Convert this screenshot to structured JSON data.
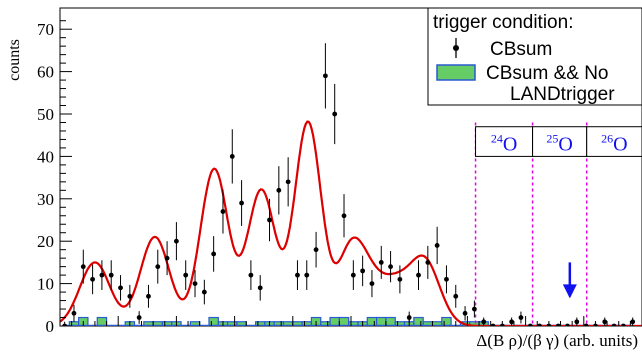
{
  "chart_data": {
    "type": "scatter",
    "ylabel": "counts",
    "xlabel": "Δ(B ρ)/(β γ) (arb. units)",
    "ylim": [
      0,
      75
    ],
    "xlim": [
      0,
      100
    ],
    "yticks": [
      0,
      10,
      20,
      30,
      40,
      50,
      60,
      70
    ],
    "grid": false,
    "legend": {
      "position": "top-right",
      "title": "trigger condition:",
      "entries": [
        {
          "label": "CBsum",
          "marker": "point-with-error-bar"
        },
        {
          "label_lines": [
            "CBsum && No",
            "LANDtrigger"
          ],
          "marker": "filled-box"
        }
      ]
    },
    "regions": [
      {
        "label_mass": "24",
        "label_element": "O",
        "x_start": 71.4,
        "x_end": 81.2
      },
      {
        "label_mass": "25",
        "label_element": "O",
        "x_start": 81.2,
        "x_end": 90.5
      },
      {
        "label_mass": "26",
        "label_element": "O",
        "x_start": 90.5,
        "x_end": 100
      }
    ],
    "arrow": {
      "x": 87.6,
      "y_top": 15,
      "y_bottom": 7
    },
    "series": [
      {
        "name": "CBsum",
        "style": "points",
        "color": "#000000",
        "x": [
          0.8,
          2.4,
          4.0,
          5.6,
          7.2,
          8.8,
          10.4,
          12.0,
          13.6,
          15.2,
          16.8,
          18.4,
          20.0,
          21.6,
          23.2,
          24.8,
          26.4,
          28.0,
          29.6,
          31.2,
          32.8,
          34.4,
          36.0,
          37.6,
          39.2,
          40.8,
          42.4,
          44.0,
          45.6,
          47.2,
          48.8,
          50.4,
          52.0,
          53.6,
          55.2,
          56.8,
          58.4,
          60.0,
          61.6,
          63.2,
          64.8,
          66.4,
          68.0,
          69.6,
          71.2,
          72.8,
          74.4,
          76.0,
          77.6,
          79.2,
          80.8,
          82.4,
          84.0,
          85.6,
          87.2,
          88.8,
          90.4,
          92.0,
          93.6,
          95.2,
          96.8,
          98.4
        ],
        "y": [
          0,
          3,
          14,
          11,
          12,
          12,
          9,
          7,
          2,
          7,
          14,
          16,
          20,
          12,
          10,
          8,
          17,
          27,
          40,
          29,
          12,
          9,
          25,
          32,
          34,
          12,
          12,
          18,
          59,
          50,
          26,
          12,
          13,
          10,
          15,
          14,
          11,
          2,
          12,
          15,
          19,
          11,
          7,
          3,
          4,
          1,
          0,
          0,
          1,
          2,
          0,
          0,
          0,
          0,
          0,
          1,
          0,
          0,
          1,
          0,
          0,
          1
        ],
        "err": [
          1,
          2,
          4,
          3.5,
          3.5,
          3.5,
          3,
          2.7,
          1.5,
          2.7,
          4,
          4,
          4.5,
          3.5,
          3.2,
          2.9,
          4.2,
          5.2,
          6.4,
          5.4,
          3.5,
          3,
          5,
          5.7,
          5.8,
          3.5,
          3.5,
          4.2,
          7.7,
          7.1,
          5.1,
          3.5,
          3.6,
          3.2,
          3.9,
          3.7,
          3.3,
          1.4,
          3.5,
          3.9,
          4.4,
          3.3,
          2.7,
          1.7,
          2,
          1,
          0,
          0,
          1,
          1.4,
          0,
          0,
          0,
          0,
          0,
          1,
          0,
          0,
          1,
          0,
          0,
          1
        ]
      },
      {
        "name": "CBsum && No LANDtrigger",
        "style": "histogram",
        "color": "#2a5ad1",
        "fill": "#66cc66",
        "x": [
          0.8,
          2.4,
          4.0,
          5.6,
          7.2,
          8.8,
          10.4,
          12.0,
          13.6,
          15.2,
          16.8,
          18.4,
          20.0,
          21.6,
          23.2,
          24.8,
          26.4,
          28.0,
          29.6,
          31.2,
          32.8,
          34.4,
          36.0,
          37.6,
          39.2,
          40.8,
          42.4,
          44.0,
          45.6,
          47.2,
          48.8,
          50.4,
          52.0,
          53.6,
          55.2,
          56.8,
          58.4,
          60.0,
          61.6,
          63.2,
          64.8,
          66.4,
          68.0,
          69.6,
          71.2,
          72.8,
          74.4,
          76.0,
          77.6,
          79.2,
          80.8,
          82.4,
          84.0,
          85.6,
          87.2,
          88.8,
          90.4,
          92.0,
          93.6,
          95.2,
          96.8,
          98.4
        ],
        "y": [
          0,
          1,
          2,
          0,
          2,
          0,
          0,
          1,
          0,
          1,
          1,
          1,
          1,
          0,
          1,
          0,
          2,
          1,
          1,
          1,
          0,
          1,
          1,
          1,
          1,
          1,
          1,
          2,
          1,
          2,
          2,
          1,
          1,
          2,
          2,
          2,
          1,
          1,
          2,
          1,
          1,
          2,
          0,
          1,
          1,
          1,
          0,
          0,
          0,
          0,
          0,
          0,
          0,
          0,
          0,
          0,
          0,
          0,
          0,
          0,
          0,
          0
        ]
      },
      {
        "name": "fit",
        "style": "line",
        "color": "#dd0000",
        "peaks": [
          {
            "center": 6.0,
            "amplitude": 15,
            "sigma": 2.6
          },
          {
            "center": 16.3,
            "amplitude": 21,
            "sigma": 2.5
          },
          {
            "center": 26.5,
            "amplitude": 37,
            "sigma": 2.4
          },
          {
            "center": 34.6,
            "amplitude": 32,
            "sigma": 2.4
          },
          {
            "center": 42.6,
            "amplitude": 48,
            "sigma": 2.3
          },
          {
            "center": 51.8,
            "amplitude": 15,
            "sigma": 2.9
          },
          {
            "center": 57.6,
            "amplitude": 8,
            "sigma": 2.4
          },
          {
            "center": 62.6,
            "amplitude": 15.5,
            "sigma": 2.6
          },
          {
            "center": 49.5,
            "amplitude": 8,
            "sigma": 2.0
          }
        ]
      }
    ]
  }
}
